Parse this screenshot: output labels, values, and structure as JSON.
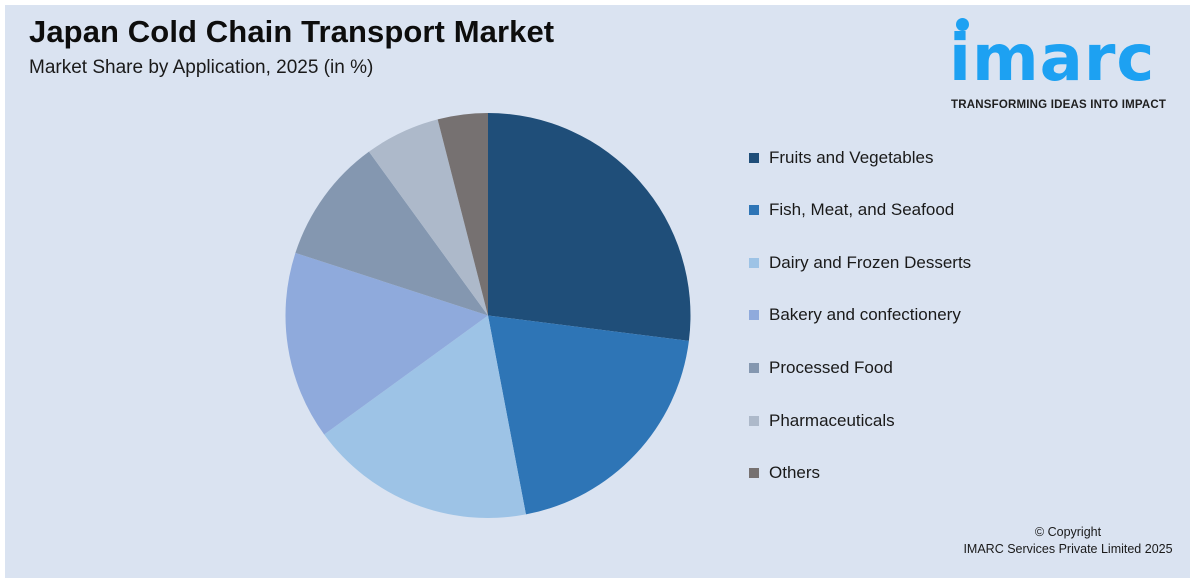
{
  "header": {
    "title": "Japan Cold Chain Transport Market",
    "subtitle": "Market Share by Application, 2025 (in %)"
  },
  "logo": {
    "word": "imarc",
    "tagline": "TRANSFORMING IDEAS INTO IMPACT",
    "color": "#1da1f2"
  },
  "footer": {
    "line1": "© Copyright",
    "line2": "IMARC Services Private Limited 2025"
  },
  "chart_data": {
    "type": "pie",
    "title": "Japan Cold Chain Transport Market",
    "subtitle": "Market Share by Application, 2025 (in %)",
    "categories": [
      "Fruits and Vegetables",
      "Fish, Meat, and Seafood",
      "Dairy and Frozen Desserts",
      "Bakery and confectionery",
      "Processed Food",
      "Pharmaceuticals",
      "Others"
    ],
    "values": [
      27,
      20,
      18,
      15,
      10,
      6,
      4
    ],
    "colors": [
      "#1f4e79",
      "#2e75b6",
      "#9dc3e6",
      "#8faadc",
      "#8497b0",
      "#adb9ca",
      "#767171"
    ],
    "start_angle_deg": 0,
    "direction": "clockwise",
    "legend_position": "right",
    "data_labels": false
  },
  "legend": {
    "items": [
      {
        "label": "Fruits and Vegetables",
        "color": "#1f4e79"
      },
      {
        "label": "Fish, Meat, and Seafood",
        "color": "#2e75b6"
      },
      {
        "label": "Dairy and Frozen Desserts",
        "color": "#9dc3e6"
      },
      {
        "label": "Bakery and confectionery",
        "color": "#8faadc"
      },
      {
        "label": "Processed Food",
        "color": "#8497b0"
      },
      {
        "label": "Pharmaceuticals",
        "color": "#adb9ca"
      },
      {
        "label": "Others",
        "color": "#767171"
      }
    ]
  }
}
